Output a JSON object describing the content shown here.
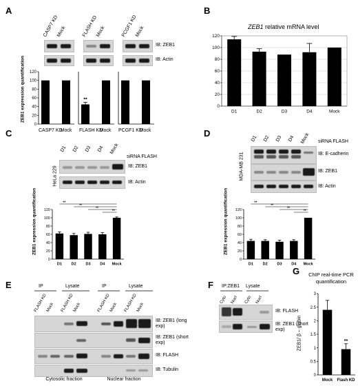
{
  "panels": {
    "A": {
      "letter": "A",
      "lanes": [
        "CASP7 KD",
        "Mock",
        "FLASH KD",
        "Mock",
        "PCGF1 KD",
        "Mock"
      ],
      "blot_labels": [
        "IB: ZEB1",
        "IB: Actin"
      ],
      "ylabel": "ZEB1 expression quantification",
      "xlabels": [
        "CASP7 KD",
        "Mock",
        "FLASH KD",
        "Mock",
        "PCGF1 KD",
        "Mock"
      ],
      "yticks": [
        "0",
        "20",
        "40",
        "60",
        "80",
        "100",
        "120"
      ],
      "sig": "**"
    },
    "B": {
      "letter": "B",
      "title_gene": "ZEB1",
      "title_rest": " relative mRNA level",
      "yticks": [
        "0",
        "20",
        "40",
        "60",
        "80",
        "100",
        "120"
      ]
    },
    "C": {
      "letter": "C",
      "lanes": [
        "D1",
        "D2",
        "D3",
        "D4",
        "Mock"
      ],
      "cell_line": "HeLa 229",
      "side_label": "siRNA FLASH",
      "blot_labels": [
        "IB: ZEB1",
        "IB: Actin"
      ],
      "ylabel": "ZEB1 expression quantification",
      "yticks": [
        "0",
        "20",
        "40",
        "60",
        "80",
        "100",
        "120"
      ],
      "sig": "**"
    },
    "D": {
      "letter": "D",
      "lanes": [
        "D1",
        "D2",
        "D3",
        "D4",
        "Mock"
      ],
      "cell_line": "MDA-MB 231",
      "side_label": "siRNA FLASH",
      "blot_labels": [
        "IB: E-cadherin",
        "IB: ZEB1",
        "IB: Actin"
      ],
      "ylabel": "ZEB1 expression quantification",
      "yticks": [
        "0",
        "20",
        "40",
        "60",
        "80",
        "100",
        "120"
      ],
      "sig": "**"
    },
    "E": {
      "letter": "E",
      "groups": [
        "IP",
        "Lysate",
        "IP",
        "Lysate"
      ],
      "lanes": [
        "FLASH KD",
        "Mock",
        "FLASH KD",
        "Mock",
        "FLASH KD",
        "Mock",
        "FLASH KD",
        "Mock"
      ],
      "blot_labels": [
        "IB: ZEB1 (long exp)",
        "IB: ZEB1 (short exp)",
        "IB: FLASH",
        "IB: Tubulin"
      ],
      "fractions": [
        "Cytosolic fraction",
        "Nuclear fraction"
      ]
    },
    "F": {
      "letter": "F",
      "groups": [
        "IP:ZEB1",
        "Lysate"
      ],
      "lanes": [
        "Cyto",
        "Nucl"
      ],
      "blot_labels": [
        "IB: FLASH",
        "IB: ZEB1 (short exp)"
      ]
    },
    "G": {
      "letter": "G",
      "title": "ChIP real-time PCR quantification",
      "ylabel": "ZEB1/ β – globin",
      "yticks": [
        "0",
        "0.5",
        "1",
        "1.5",
        "2",
        "2.5",
        "3"
      ],
      "sig": "**"
    }
  },
  "chart_data": [
    {
      "panel": "A",
      "type": "bar",
      "categories": [
        "CASP7 KD",
        "Mock",
        "FLASH KD",
        "Mock",
        "PCGF1 KD",
        "Mock"
      ],
      "values": [
        100,
        100,
        45,
        100,
        100,
        100
      ],
      "errors": [
        0,
        0,
        5,
        0,
        0,
        0
      ],
      "ylabel": "ZEB1 expression quantification",
      "ylim": [
        0,
        120
      ]
    },
    {
      "panel": "B",
      "type": "bar",
      "title": "ZEB1 relative mRNA level",
      "categories": [
        "D1",
        "D2",
        "D3",
        "D4",
        "Mock"
      ],
      "values": [
        114,
        93,
        88,
        92,
        100
      ],
      "errors": [
        5,
        5,
        0,
        15,
        0
      ],
      "ylim": [
        0,
        120
      ]
    },
    {
      "panel": "C",
      "type": "bar",
      "categories": [
        "D1",
        "D2",
        "D3",
        "D4",
        "Mock"
      ],
      "values": [
        62,
        58,
        61,
        60,
        100
      ],
      "errors": [
        4,
        4,
        4,
        4,
        2
      ],
      "ylabel": "ZEB1 expression quantification",
      "ylim": [
        0,
        120
      ]
    },
    {
      "panel": "D",
      "type": "bar",
      "categories": [
        "D1",
        "D2",
        "D3",
        "D4",
        "Mock"
      ],
      "values": [
        44,
        44,
        42,
        44,
        100
      ],
      "errors": [
        4,
        3,
        4,
        3,
        0
      ],
      "ylabel": "ZEB1 expression quantification",
      "ylim": [
        0,
        120
      ]
    },
    {
      "panel": "G",
      "type": "bar",
      "title": "ChIP real-time PCR quantification",
      "categories": [
        "Mock",
        "Flash KD"
      ],
      "values": [
        2.4,
        0.95
      ],
      "errors": [
        0.35,
        0.2
      ],
      "ylabel": "ZEB1/ β – globin",
      "ylim": [
        0,
        3
      ]
    }
  ]
}
